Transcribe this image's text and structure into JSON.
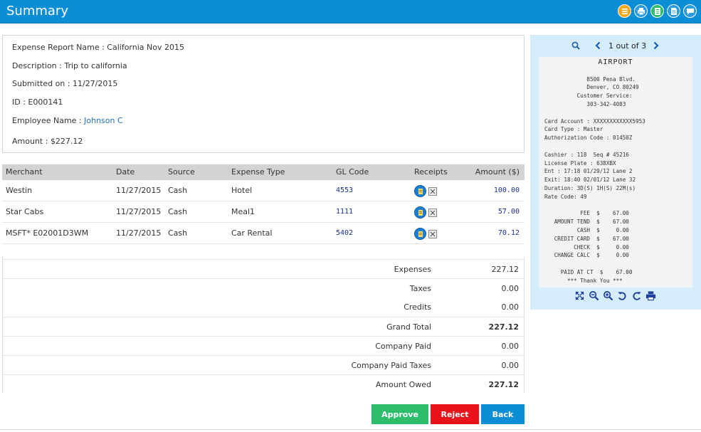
{
  "header": {
    "title": "Summary",
    "toolbar_icons": [
      "list-icon",
      "print-icon",
      "document-green-icon",
      "document-icon",
      "comment-icon"
    ]
  },
  "info": {
    "report_name_label": "Expense Report Name : ",
    "report_name": "California Nov 2015",
    "description_label": "Description : ",
    "description": "Trip to california",
    "submitted_label": "Submitted on : ",
    "submitted": "11/27/2015",
    "id_label": "ID : ",
    "id": "E000141",
    "employee_label": "Employee Name : ",
    "employee": "Johnson C",
    "amount_label": "Amount : ",
    "amount": "$227.12"
  },
  "table": {
    "columns": [
      "Merchant",
      "Date",
      "Source",
      "Expense Type",
      "GL Code",
      "Receipts",
      "Amount ($)"
    ],
    "rows": [
      {
        "merchant": "Westin",
        "date": "11/27/2015",
        "source": "Cash",
        "type": "Hotel",
        "gl": "4553",
        "amount": "100.00"
      },
      {
        "merchant": "Star Cabs",
        "date": "11/27/2015",
        "source": "Cash",
        "type": "Meal1",
        "gl": "1111",
        "amount": "57.00"
      },
      {
        "merchant": "MSFT* E02001D3WM",
        "date": "11/27/2015",
        "source": "Cash",
        "type": "Car Rental",
        "gl": "5402",
        "amount": "70.12"
      }
    ]
  },
  "totals": [
    {
      "label": "Expenses",
      "value": "227.12"
    },
    {
      "label": "Taxes",
      "value": "0.00"
    },
    {
      "label": "Credits",
      "value": "0.00"
    },
    {
      "label": "Grand Total",
      "value": "227.12"
    },
    {
      "label": "Company Paid",
      "value": "0.00"
    },
    {
      "label": "Company Paid Taxes",
      "value": "0.00"
    },
    {
      "label": "Amount Owed",
      "value": "227.12"
    }
  ],
  "actions": {
    "approve": "Approve",
    "reject": "Reject",
    "back": "Back"
  },
  "viewer": {
    "page_indicator": "1 out of 3",
    "receipt_title": "AIRPORT",
    "receipt_lines": [
      "",
      "",
      "             8500 Pena Blvd.",
      "             Denver, CO 80249",
      "          Customer Service:",
      "             303-342-4083",
      "",
      "Card Account : XXXXXXXXXXXX5953",
      "Card Type : Master",
      "Authorization Code : 01450Z",
      "",
      "Cashier : 118  Seq # 45216",
      "License Plate : 638XBX",
      "Ent : 17:18 01/29/12 Lane 2",
      "Exit: 18:40 02/01/12 Lane 32",
      "Duration: 3D(S) 1H(S) 22M(s)",
      "Rate Code: 49",
      "",
      "           FEE  $    67.00",
      "   AMOUNT TEND  $    67.00",
      "          CASH  $     0.00",
      "   CREDIT CARD  $    67.00",
      "         CHECK  $     0.00",
      "   CHANGE CALC  $     0.00",
      "",
      "     PAID AT CT  $    67.00",
      "       *** Thank You ***"
    ],
    "tools": [
      "fullscreen-icon",
      "zoom-out-icon",
      "zoom-in-icon",
      "rotate-left-icon",
      "rotate-right-icon",
      "print-icon"
    ]
  },
  "colors": {
    "header_bg": "#0c8ed6",
    "approve": "#2ebd6b",
    "reject": "#e8131b",
    "back": "#0c8ed6",
    "link": "#1f6fbf",
    "viewer_bg": "#d5ecfa"
  }
}
